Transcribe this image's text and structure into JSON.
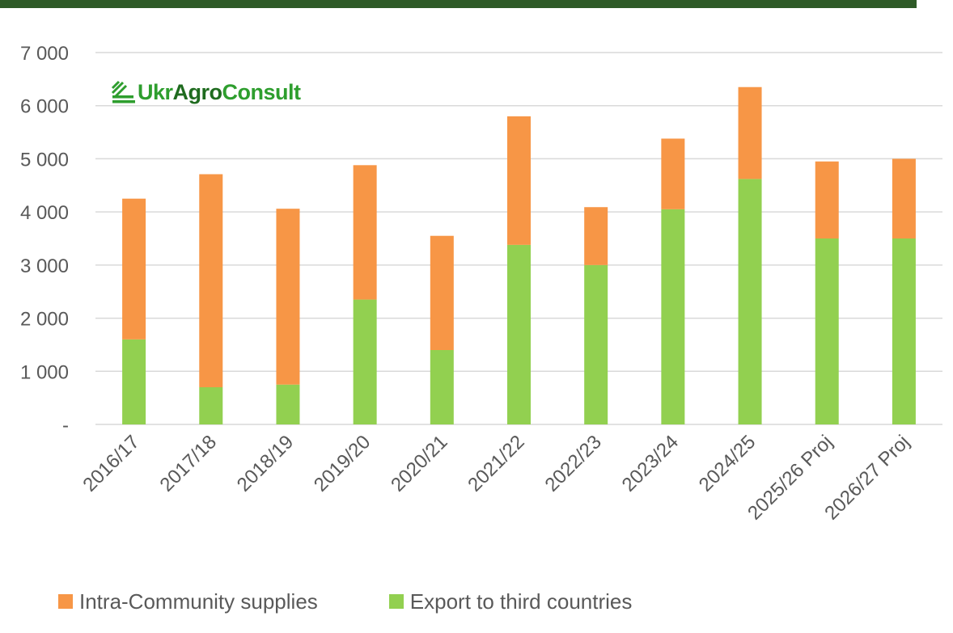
{
  "logo": {
    "prefix": "Ukr",
    "middle": "Agro",
    "suffix": "Consult"
  },
  "colors": {
    "intra": "#f79646",
    "export": "#92d050",
    "grid": "#d9d9d9",
    "axis": "#595959",
    "brand_band": "#2e5a27",
    "logo_green": "#2e9e2e",
    "logo_dark": "#1f6b1f"
  },
  "chart_data": {
    "type": "bar",
    "stacked": true,
    "categories": [
      "2016/17",
      "2017/18",
      "2018/19",
      "2019/20",
      "2020/21",
      "2021/22",
      "2022/23",
      "2023/24",
      "2024/25",
      "2025/26 Proj",
      "2026/27 Proj"
    ],
    "series": [
      {
        "name": "Export to third countries",
        "color": "#92d050",
        "values": [
          1600,
          700,
          750,
          2350,
          1400,
          3380,
          3000,
          4050,
          4620,
          3500,
          3500
        ]
      },
      {
        "name": "Intra-Community supplies",
        "color": "#f79646",
        "values": [
          2650,
          4010,
          3310,
          2530,
          2150,
          2420,
          1090,
          1330,
          1730,
          1450,
          1500
        ]
      }
    ],
    "yticks": [
      0,
      1000,
      2000,
      3000,
      4000,
      5000,
      6000,
      7000
    ],
    "ytick_labels": [
      "-",
      "1 000",
      "2 000",
      "3 000",
      "4 000",
      "5 000",
      "6 000",
      "7 000"
    ],
    "ylim": [
      0,
      7000
    ],
    "grid": true,
    "legend": {
      "position": "bottom-left",
      "order": [
        "Intra-Community supplies",
        "Export to third countries"
      ]
    }
  }
}
